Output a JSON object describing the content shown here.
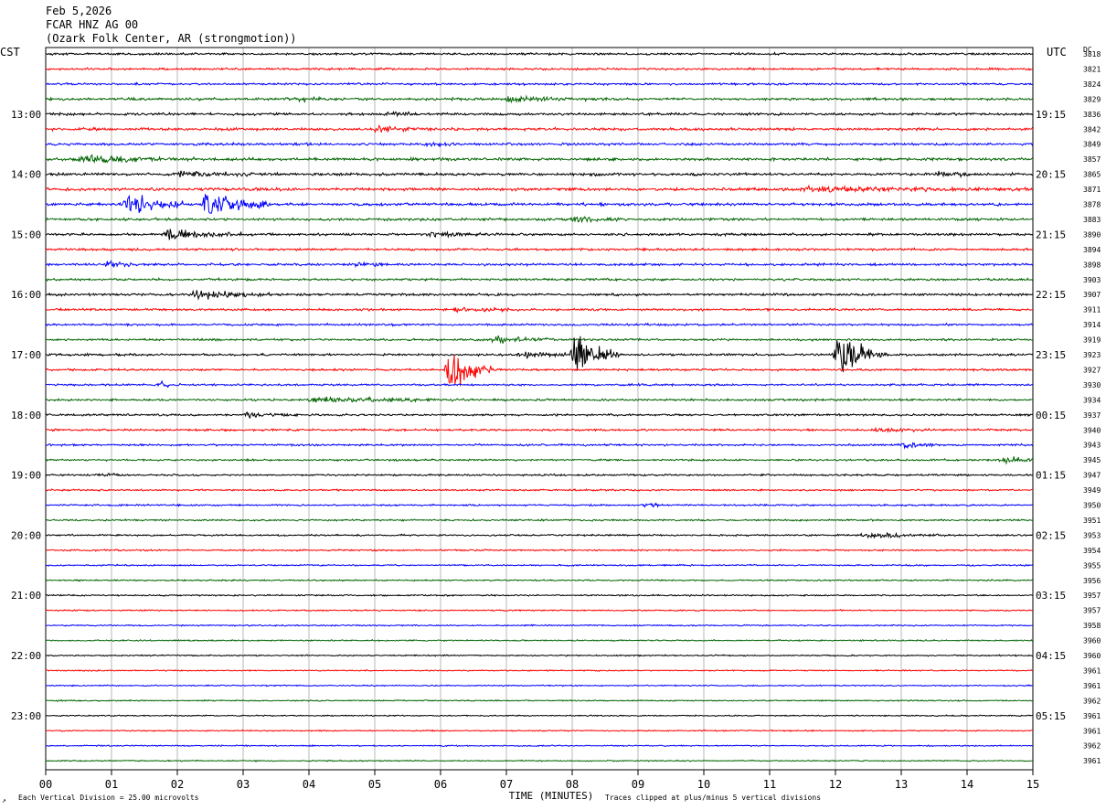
{
  "header": {
    "date": "Feb 5,2026",
    "channel": "FCAR HNZ AG 00",
    "location": "(Ozark Folk Center, AR (strongmotion))",
    "left_timezone": "CST",
    "right_timezone": "UTC",
    "dc_label": "DC"
  },
  "footer": {
    "scale_note": "Each Vertical Division =   25.00 microvolts",
    "clip_note": "Traces clipped at plus/minus 5 vertical divisions",
    "corner_mark": "↗"
  },
  "chart_data": {
    "type": "line",
    "xlabel": "TIME (MINUTES)",
    "xlim": [
      0,
      15
    ],
    "x_ticks": [
      "00",
      "01",
      "02",
      "03",
      "04",
      "05",
      "06",
      "07",
      "08",
      "09",
      "10",
      "11",
      "12",
      "13",
      "14",
      "15"
    ],
    "trace_colors": [
      "#000000",
      "#ff0000",
      "#0000ff",
      "#006400"
    ],
    "start_hour_cst": 12.25,
    "minutes_per_line": 15,
    "lines": 48,
    "left_hour_labels": [
      "13:00",
      "14:00",
      "15:00",
      "16:00",
      "17:00",
      "18:00",
      "19:00",
      "20:00",
      "21:00",
      "22:00",
      "23:00"
    ],
    "right_hour_labels": [
      "19:15",
      "20:15",
      "21:15",
      "22:15",
      "23:15",
      "00:15",
      "01:15",
      "02:15",
      "03:15",
      "04:15",
      "05:15"
    ],
    "dc_offsets": [
      "3818",
      "3821",
      "3824",
      "3829",
      "3836",
      "3842",
      "3849",
      "3857",
      "3865",
      "3871",
      "3878",
      "3883",
      "3890",
      "3894",
      "3898",
      "3903",
      "3907",
      "3911",
      "3914",
      "3919",
      "3923",
      "3927",
      "3930",
      "3934",
      "3937",
      "3940",
      "3943",
      "3945",
      "3947",
      "3949",
      "3950",
      "3951",
      "3953",
      "3954",
      "3955",
      "3956",
      "3957",
      "3957",
      "3958",
      "3960",
      "3960",
      "3961",
      "3961",
      "3962",
      "3961",
      "3961",
      "3962",
      "3961"
    ],
    "noise_levels": [
      0.9,
      0.85,
      0.85,
      1.0,
      1.0,
      1.1,
      1.0,
      1.1,
      1.1,
      1.2,
      1.1,
      1.0,
      1.0,
      0.95,
      0.95,
      0.95,
      0.95,
      0.9,
      0.85,
      0.85,
      0.9,
      0.85,
      0.8,
      0.85,
      0.8,
      0.85,
      0.8,
      0.75,
      0.75,
      0.7,
      0.7,
      0.7,
      0.7,
      0.65,
      0.6,
      0.6,
      0.6,
      0.55,
      0.55,
      0.55,
      0.55,
      0.5,
      0.5,
      0.5,
      0.5,
      0.5,
      0.5,
      0.5
    ],
    "events": [
      {
        "line": 3,
        "minute": 3.8,
        "duration": 0.4,
        "amplitude": 3
      },
      {
        "line": 3,
        "minute": 7.0,
        "duration": 1.5,
        "amplitude": 2.5
      },
      {
        "line": 4,
        "minute": 5.2,
        "duration": 0.5,
        "amplitude": 2.5
      },
      {
        "line": 5,
        "minute": 5.0,
        "duration": 0.8,
        "amplitude": 3
      },
      {
        "line": 6,
        "minute": 5.8,
        "duration": 0.6,
        "amplitude": 2
      },
      {
        "line": 7,
        "minute": 0.5,
        "duration": 1.8,
        "amplitude": 3
      },
      {
        "line": 8,
        "minute": 2.0,
        "duration": 1.2,
        "amplitude": 3
      },
      {
        "line": 8,
        "minute": 13.5,
        "duration": 0.6,
        "amplitude": 3
      },
      {
        "line": 9,
        "minute": 11.5,
        "duration": 3.5,
        "amplitude": 2
      },
      {
        "line": 10,
        "minute": 1.2,
        "duration": 0.9,
        "amplitude": 12
      },
      {
        "line": 10,
        "minute": 2.4,
        "duration": 1.0,
        "amplitude": 14
      },
      {
        "line": 11,
        "minute": 8.0,
        "duration": 0.8,
        "amplitude": 2
      },
      {
        "line": 12,
        "minute": 1.8,
        "duration": 1.4,
        "amplitude": 5
      },
      {
        "line": 12,
        "minute": 5.8,
        "duration": 0.8,
        "amplitude": 2.5
      },
      {
        "line": 14,
        "minute": 0.9,
        "duration": 0.5,
        "amplitude": 3
      },
      {
        "line": 14,
        "minute": 4.7,
        "duration": 0.5,
        "amplitude": 3
      },
      {
        "line": 16,
        "minute": 2.2,
        "duration": 1.5,
        "amplitude": 3.5
      },
      {
        "line": 17,
        "minute": 6.2,
        "duration": 1.0,
        "amplitude": 2
      },
      {
        "line": 19,
        "minute": 6.8,
        "duration": 1.0,
        "amplitude": 3
      },
      {
        "line": 20,
        "minute": 8.0,
        "duration": 0.7,
        "amplitude": 25
      },
      {
        "line": 20,
        "minute": 7.2,
        "duration": 0.8,
        "amplitude": 3
      },
      {
        "line": 20,
        "minute": 12.0,
        "duration": 0.8,
        "amplitude": 22
      },
      {
        "line": 21,
        "minute": 6.1,
        "duration": 0.7,
        "amplitude": 22
      },
      {
        "line": 22,
        "minute": 1.7,
        "duration": 0.4,
        "amplitude": 3
      },
      {
        "line": 23,
        "minute": 4.0,
        "duration": 2.5,
        "amplitude": 2.5
      },
      {
        "line": 24,
        "minute": 3.0,
        "duration": 1.0,
        "amplitude": 2
      },
      {
        "line": 25,
        "minute": 12.5,
        "duration": 1.0,
        "amplitude": 2
      },
      {
        "line": 26,
        "minute": 13.0,
        "duration": 0.6,
        "amplitude": 3
      },
      {
        "line": 27,
        "minute": 14.5,
        "duration": 0.9,
        "amplitude": 3
      },
      {
        "line": 28,
        "minute": 0.8,
        "duration": 0.5,
        "amplitude": 2
      },
      {
        "line": 30,
        "minute": 9.1,
        "duration": 0.3,
        "amplitude": 3
      },
      {
        "line": 32,
        "minute": 12.4,
        "duration": 1.5,
        "amplitude": 2
      }
    ]
  }
}
